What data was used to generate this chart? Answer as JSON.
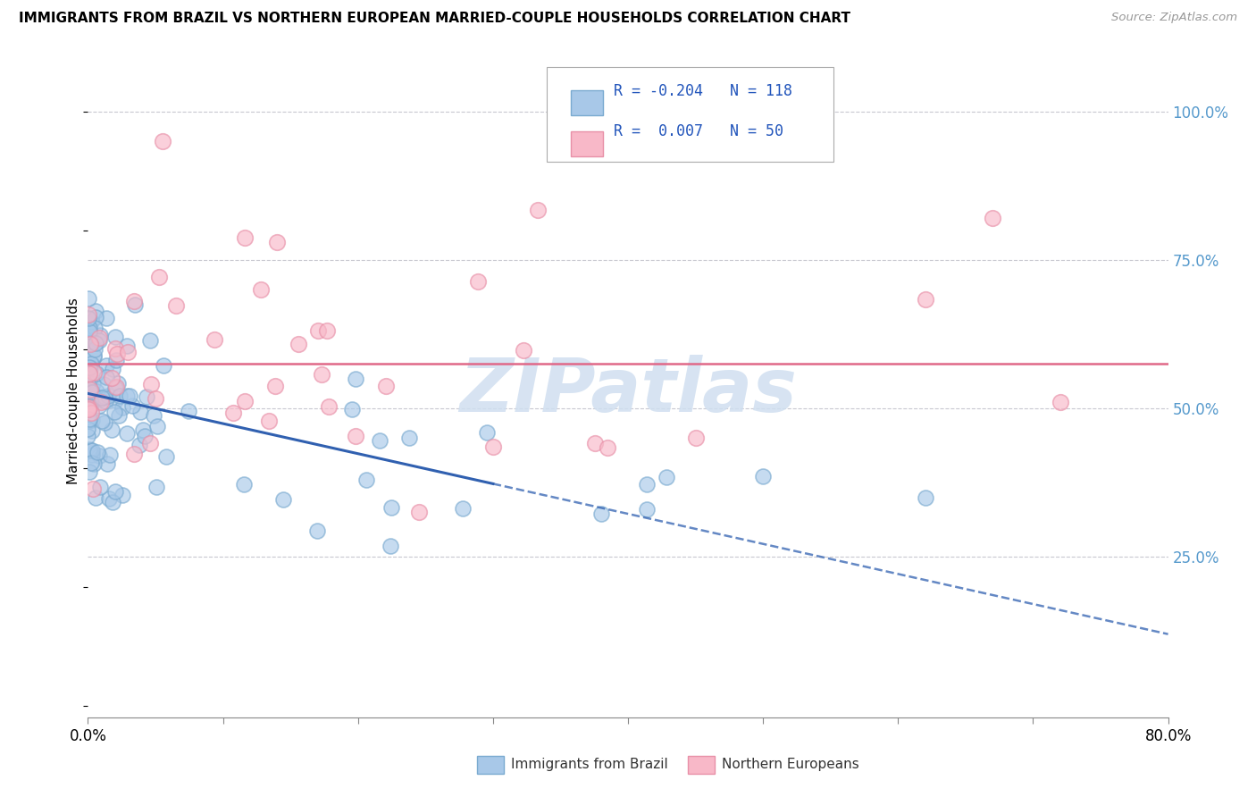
{
  "title": "IMMIGRANTS FROM BRAZIL VS NORTHERN EUROPEAN MARRIED-COUPLE HOUSEHOLDS CORRELATION CHART",
  "source": "Source: ZipAtlas.com",
  "ylabel": "Married-couple Households",
  "xlim": [
    0.0,
    0.8
  ],
  "ylim": [
    -0.02,
    1.08
  ],
  "blue_R": -0.204,
  "blue_N": 118,
  "pink_R": 0.007,
  "pink_N": 50,
  "blue_color": "#a8c8e8",
  "blue_edge_color": "#7aaad0",
  "pink_color": "#f8b8c8",
  "pink_edge_color": "#e890a8",
  "blue_line_color": "#3060b0",
  "pink_line_color": "#e06888",
  "watermark_color": "#d0dff0",
  "ytick_color": "#5599cc",
  "legend_label_blue": "Immigrants from Brazil",
  "legend_label_pink": "Northern Europeans",
  "blue_trend_y0": 0.525,
  "blue_trend_y_at_30pct": 0.415,
  "blue_trend_y_at_80pct": 0.12,
  "pink_trend_y": 0.575,
  "solid_cutoff": 0.3
}
